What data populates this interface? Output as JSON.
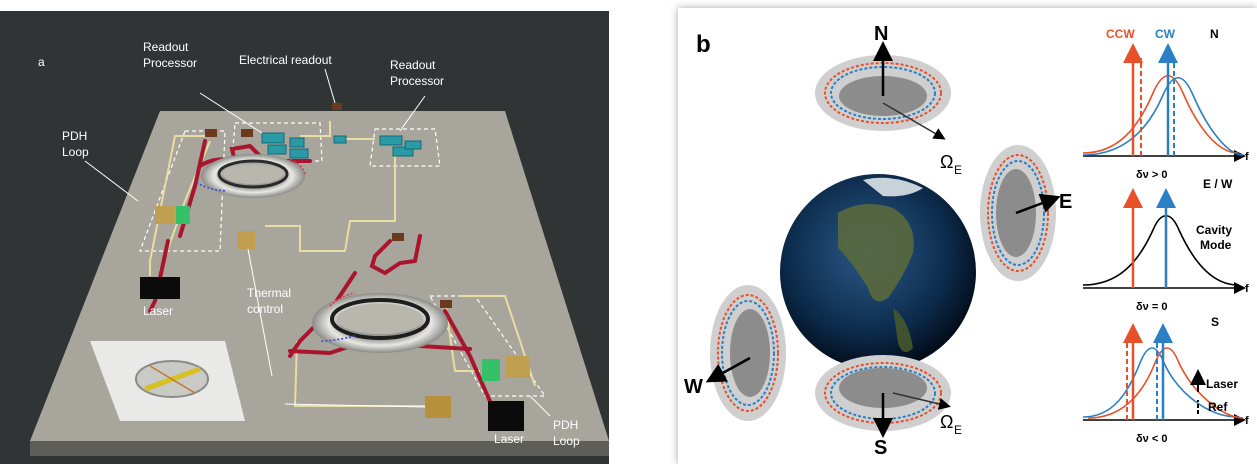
{
  "panel_a": {
    "letter": "a",
    "labels": {
      "readout_processor_left": [
        "Readout",
        "Processor"
      ],
      "electrical_readout": "Electrical readout",
      "readout_processor_right": [
        "Readout",
        "Processor"
      ],
      "pdh_loop_left": [
        "PDH",
        "Loop"
      ],
      "laser_left": "Laser",
      "thermal_control": [
        "Thermal",
        "control"
      ],
      "laser_right": "Laser",
      "pdh_loop_right": [
        "PDH",
        "Loop"
      ]
    }
  },
  "panel_b": {
    "letter": "b",
    "compass": {
      "north": "N",
      "east": "E",
      "west": "W",
      "south": "S"
    },
    "omega_top": {
      "symbol": "Ω",
      "sub": "E"
    },
    "omega_bottom": {
      "symbol": "Ω",
      "sub": "E"
    },
    "spectra": [
      {
        "tag": "N",
        "ccw_label": "CCW",
        "cw_label": "CW",
        "delta": "δν > 0",
        "axis": "f"
      },
      {
        "tag": "E / W",
        "mode_label": [
          "Cavity",
          "Mode"
        ],
        "delta": "δν = 0",
        "axis": "f"
      },
      {
        "tag": "S",
        "legend_laser": "Laser",
        "legend_ref": "Ref",
        "delta": "δν < 0",
        "axis": "f"
      }
    ],
    "colors": {
      "ccw": "#e8502a",
      "cw": "#2b7fc4",
      "mode": "#000000"
    }
  }
}
